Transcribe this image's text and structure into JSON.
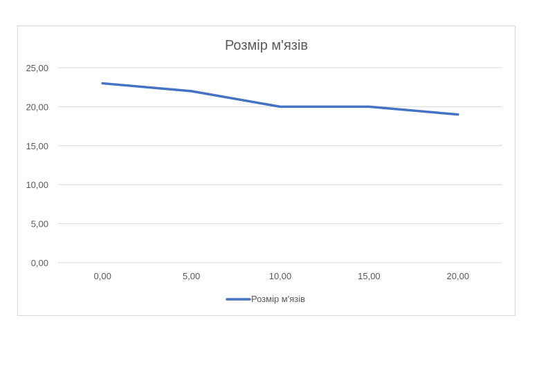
{
  "chart_data": {
    "type": "line",
    "title": "Розмір м'язів",
    "xlabel": "",
    "ylabel": "",
    "categories": [
      "0,00",
      "5,00",
      "10,00",
      "15,00",
      "20,00"
    ],
    "series": [
      {
        "name": "Розмір м'язів",
        "color": "#4472c4",
        "values": [
          23,
          22,
          20,
          20,
          19
        ]
      }
    ],
    "ylim": [
      0,
      25
    ],
    "yticks": [
      "0,00",
      "5,00",
      "10,00",
      "15,00",
      "20,00",
      "25,00"
    ],
    "grid": true,
    "legend_position": "bottom",
    "gridline_color": "#d9d9d9"
  }
}
